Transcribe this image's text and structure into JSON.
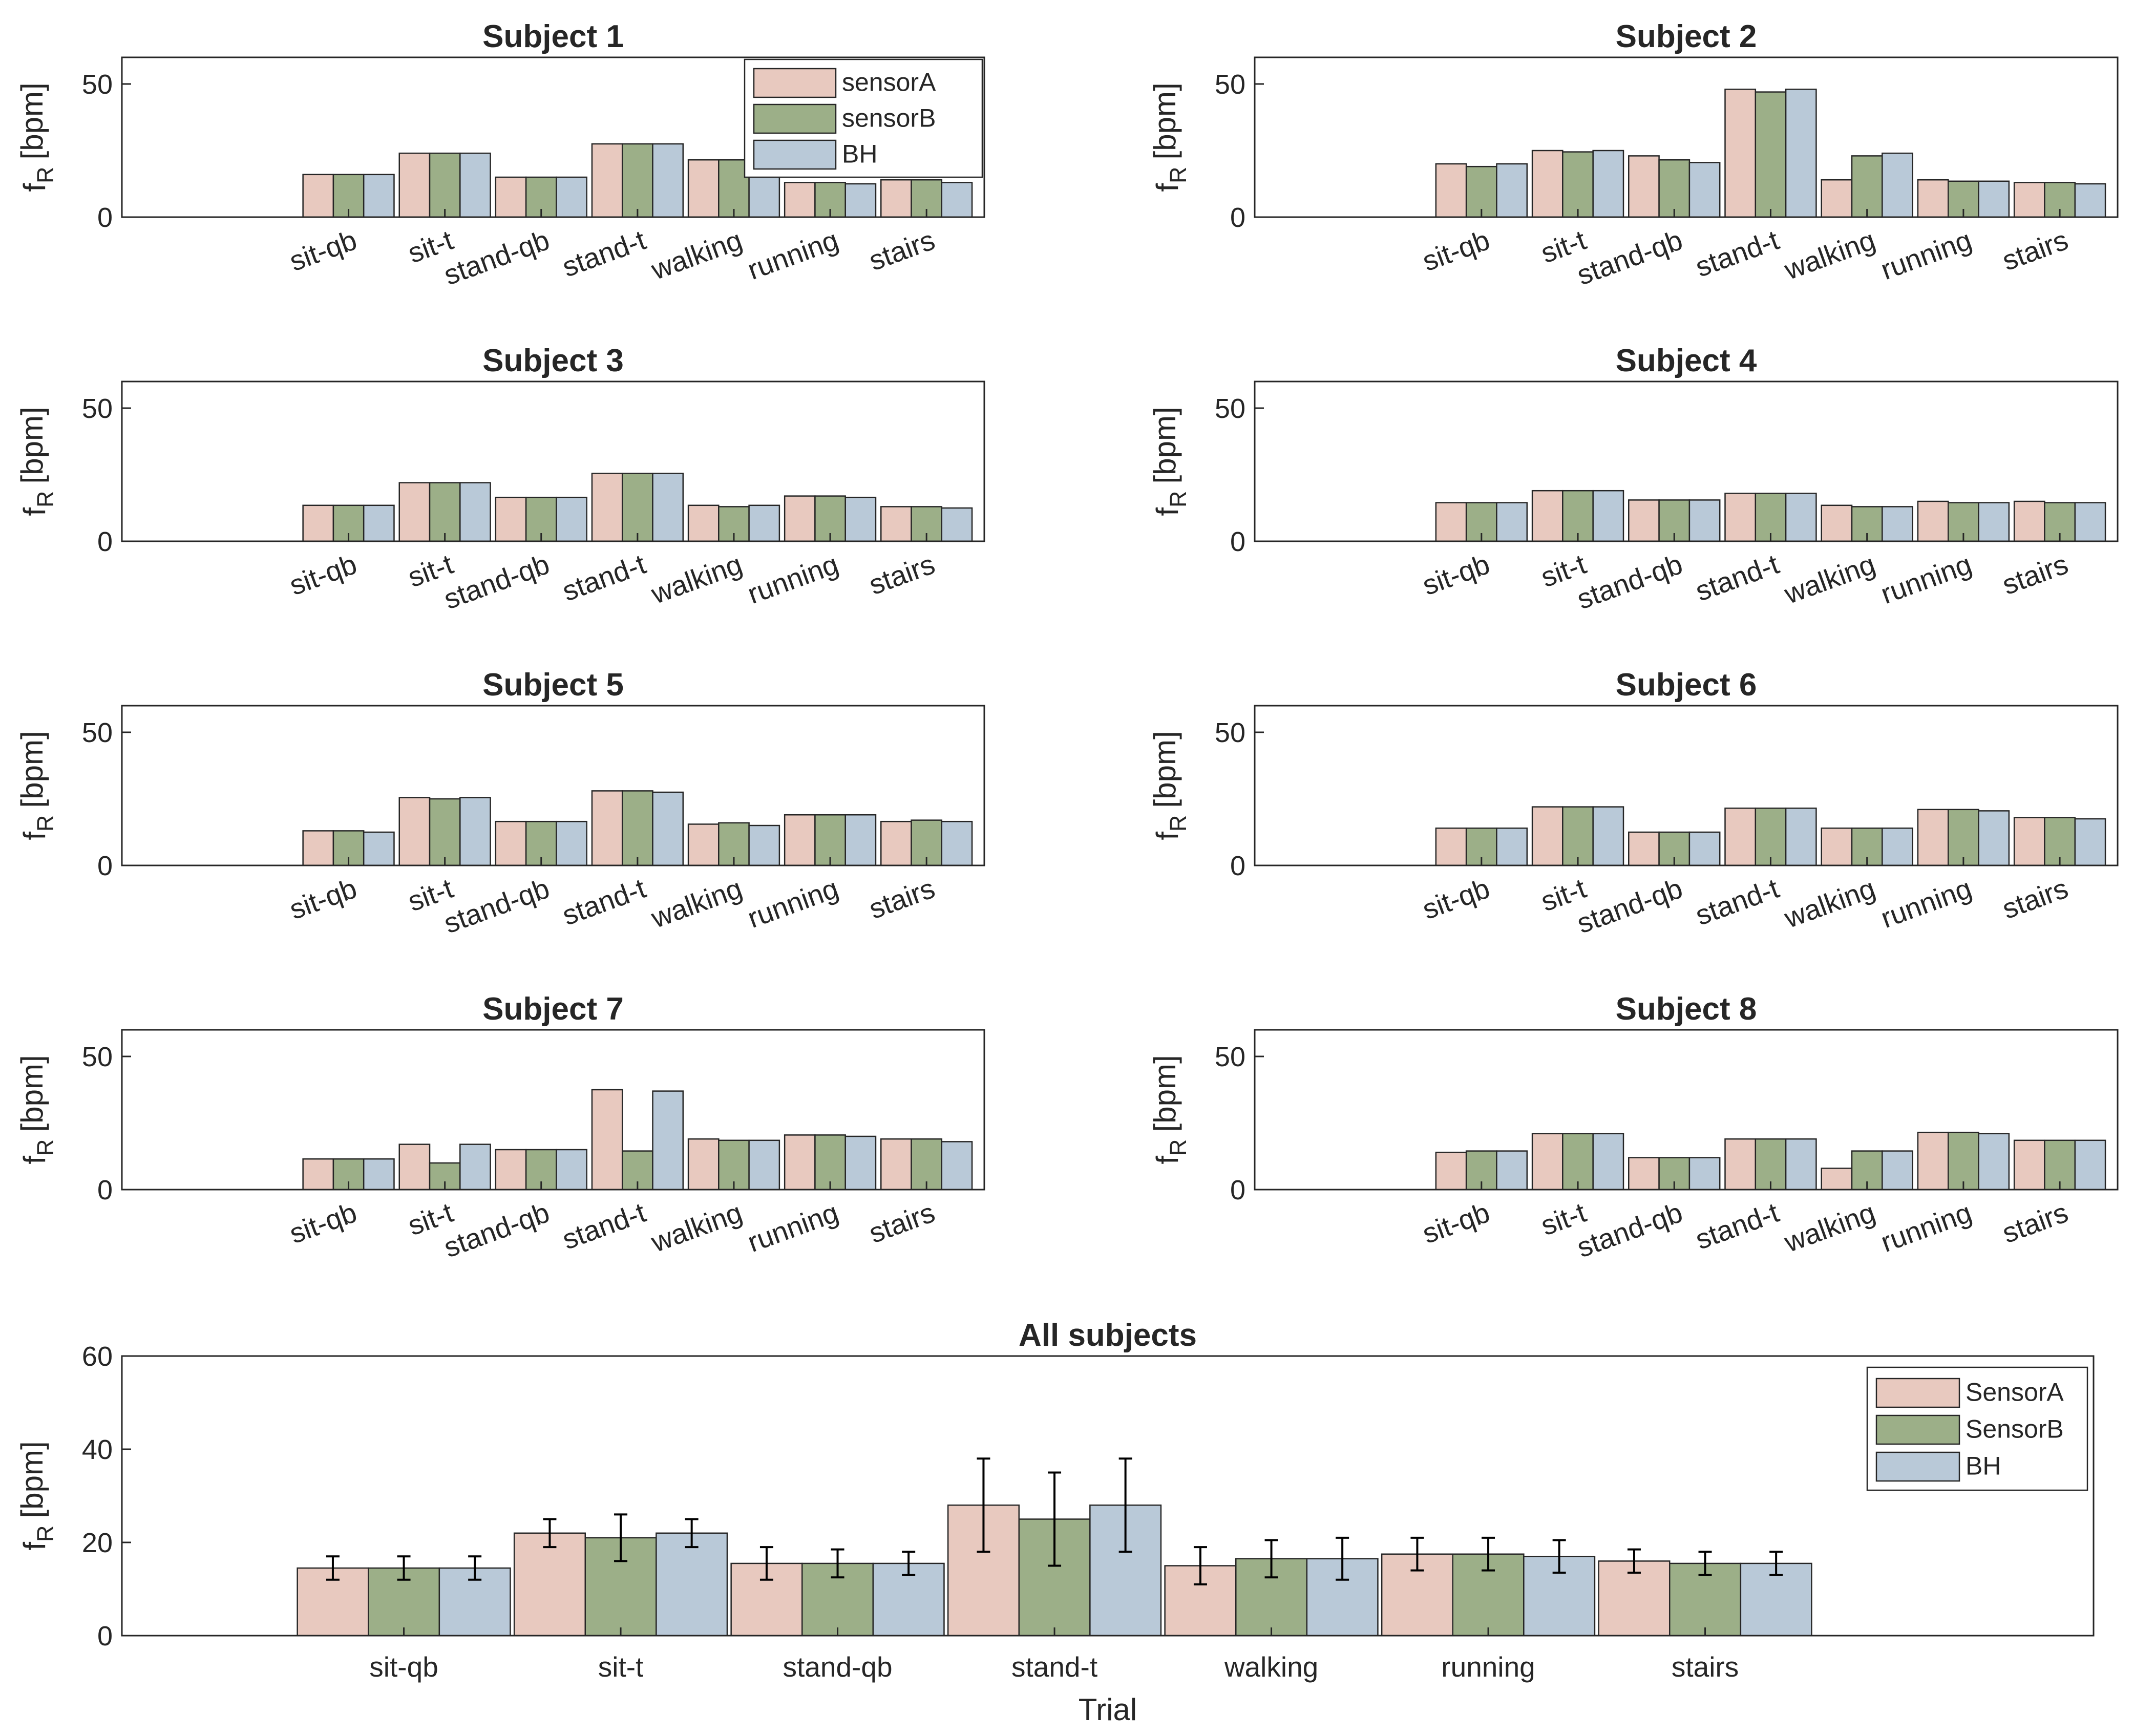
{
  "colors": {
    "sensorA": "#e8c9bf",
    "sensorB": "#9caf88",
    "BH": "#b9c9d8",
    "edge": "#262626"
  },
  "chart_data": [
    {
      "type": "bar",
      "title": "Subject 1",
      "ylabel": "f_R [bpm]",
      "ylabel_main": "f",
      "ylabel_sub": "R",
      "ylabel_unit": "[bpm]",
      "xlabel": "",
      "ylim": [
        0,
        60
      ],
      "yticks": [
        "0",
        "50"
      ],
      "legend": "top-right",
      "legend_entries": [
        "sensorA",
        "sensorB",
        "BH"
      ],
      "categories": [
        "sit-qb",
        "sit-t",
        "stand-qb",
        "stand-t",
        "walking",
        "running",
        "stairs"
      ],
      "series": [
        {
          "name": "sensorA",
          "values": [
            16,
            24,
            15,
            27.5,
            21.5,
            13,
            14
          ]
        },
        {
          "name": "sensorB",
          "values": [
            16,
            24,
            15,
            27.5,
            21.5,
            13,
            14
          ]
        },
        {
          "name": "BH",
          "values": [
            16,
            24,
            15,
            27.5,
            21.5,
            12.5,
            13
          ]
        }
      ]
    },
    {
      "type": "bar",
      "title": "Subject 2",
      "ylabel": "f_R [bpm]",
      "ylabel_main": "f",
      "ylabel_sub": "R",
      "ylabel_unit": "[bpm]",
      "xlabel": "",
      "ylim": [
        0,
        60
      ],
      "yticks": [
        "0",
        "50"
      ],
      "categories": [
        "sit-qb",
        "sit-t",
        "stand-qb",
        "stand-t",
        "walking",
        "running",
        "stairs"
      ],
      "series": [
        {
          "name": "sensorA",
          "values": [
            20,
            25,
            23,
            48,
            14,
            14,
            13
          ]
        },
        {
          "name": "sensorB",
          "values": [
            19,
            24.5,
            21.5,
            47,
            23,
            13.5,
            13
          ]
        },
        {
          "name": "BH",
          "values": [
            20,
            25,
            20.5,
            48,
            24,
            13.5,
            12.5
          ]
        }
      ]
    },
    {
      "type": "bar",
      "title": "Subject 3",
      "ylabel": "f_R [bpm]",
      "ylabel_main": "f",
      "ylabel_sub": "R",
      "ylabel_unit": "[bpm]",
      "xlabel": "",
      "ylim": [
        0,
        60
      ],
      "yticks": [
        "0",
        "50"
      ],
      "categories": [
        "sit-qb",
        "sit-t",
        "stand-qb",
        "stand-t",
        "walking",
        "running",
        "stairs"
      ],
      "series": [
        {
          "name": "sensorA",
          "values": [
            13.5,
            22,
            16.5,
            25.5,
            13.5,
            17,
            13
          ]
        },
        {
          "name": "sensorB",
          "values": [
            13.5,
            22,
            16.5,
            25.5,
            13,
            17,
            13
          ]
        },
        {
          "name": "BH",
          "values": [
            13.5,
            22,
            16.5,
            25.5,
            13.5,
            16.5,
            12.5
          ]
        }
      ]
    },
    {
      "type": "bar",
      "title": "Subject 4",
      "ylabel": "f_R [bpm]",
      "ylabel_main": "f",
      "ylabel_sub": "R",
      "ylabel_unit": "[bpm]",
      "xlabel": "",
      "ylim": [
        0,
        60
      ],
      "yticks": [
        "0",
        "50"
      ],
      "categories": [
        "sit-qb",
        "sit-t",
        "stand-qb",
        "stand-t",
        "walking",
        "running",
        "stairs"
      ],
      "series": [
        {
          "name": "sensorA",
          "values": [
            14.5,
            19,
            15.5,
            18,
            13.5,
            15,
            15
          ]
        },
        {
          "name": "sensorB",
          "values": [
            14.5,
            19,
            15.5,
            18,
            13,
            14.5,
            14.5
          ]
        },
        {
          "name": "BH",
          "values": [
            14.5,
            19,
            15.5,
            18,
            13,
            14.5,
            14.5
          ]
        }
      ]
    },
    {
      "type": "bar",
      "title": "Subject 5",
      "ylabel": "f_R [bpm]",
      "ylabel_main": "f",
      "ylabel_sub": "R",
      "ylabel_unit": "[bpm]",
      "xlabel": "",
      "ylim": [
        0,
        60
      ],
      "yticks": [
        "0",
        "50"
      ],
      "categories": [
        "sit-qb",
        "sit-t",
        "stand-qb",
        "stand-t",
        "walking",
        "running",
        "stairs"
      ],
      "series": [
        {
          "name": "sensorA",
          "values": [
            13,
            25.5,
            16.5,
            28,
            15.5,
            19,
            16.5
          ]
        },
        {
          "name": "sensorB",
          "values": [
            13,
            25,
            16.5,
            28,
            16,
            19,
            17
          ]
        },
        {
          "name": "BH",
          "values": [
            12.5,
            25.5,
            16.5,
            27.5,
            15,
            19,
            16.5
          ]
        }
      ]
    },
    {
      "type": "bar",
      "title": "Subject 6",
      "ylabel": "f_R [bpm]",
      "ylabel_main": "f",
      "ylabel_sub": "R",
      "ylabel_unit": "[bpm]",
      "xlabel": "",
      "ylim": [
        0,
        60
      ],
      "yticks": [
        "0",
        "50"
      ],
      "categories": [
        "sit-qb",
        "sit-t",
        "stand-qb",
        "stand-t",
        "walking",
        "running",
        "stairs"
      ],
      "series": [
        {
          "name": "sensorA",
          "values": [
            14,
            22,
            12.5,
            21.5,
            14,
            21,
            18
          ]
        },
        {
          "name": "sensorB",
          "values": [
            14,
            22,
            12.5,
            21.5,
            14,
            21,
            18
          ]
        },
        {
          "name": "BH",
          "values": [
            14,
            22,
            12.5,
            21.5,
            14,
            20.5,
            17.5
          ]
        }
      ]
    },
    {
      "type": "bar",
      "title": "Subject 7",
      "ylabel": "f_R [bpm]",
      "ylabel_main": "f",
      "ylabel_sub": "R",
      "ylabel_unit": "[bpm]",
      "xlabel": "",
      "ylim": [
        0,
        60
      ],
      "yticks": [
        "0",
        "50"
      ],
      "categories": [
        "sit-qb",
        "sit-t",
        "stand-qb",
        "stand-t",
        "walking",
        "running",
        "stairs"
      ],
      "series": [
        {
          "name": "sensorA",
          "values": [
            11.5,
            17,
            15,
            37.5,
            19,
            20.5,
            19
          ]
        },
        {
          "name": "sensorB",
          "values": [
            11.5,
            10,
            15,
            14.5,
            18.5,
            20.5,
            19
          ]
        },
        {
          "name": "BH",
          "values": [
            11.5,
            17,
            15,
            37,
            18.5,
            20,
            18
          ]
        }
      ]
    },
    {
      "type": "bar",
      "title": "Subject 8",
      "ylabel": "f_R [bpm]",
      "ylabel_main": "f",
      "ylabel_sub": "R",
      "ylabel_unit": "[bpm]",
      "xlabel": "",
      "ylim": [
        0,
        60
      ],
      "yticks": [
        "0",
        "50"
      ],
      "categories": [
        "sit-qb",
        "sit-t",
        "stand-qb",
        "stand-t",
        "walking",
        "running",
        "stairs"
      ],
      "series": [
        {
          "name": "sensorA",
          "values": [
            14,
            21,
            12,
            19,
            8,
            21.5,
            18.5
          ]
        },
        {
          "name": "sensorB",
          "values": [
            14.5,
            21,
            12,
            19,
            14.5,
            21.5,
            18.5
          ]
        },
        {
          "name": "BH",
          "values": [
            14.5,
            21,
            12,
            19,
            14.5,
            21,
            18.5
          ]
        }
      ]
    },
    {
      "type": "bar",
      "title": "All subjects",
      "ylabel": "f_R [bpm]",
      "ylabel_main": "f",
      "ylabel_sub": "R",
      "ylabel_unit": "[bpm]",
      "xlabel": "Trial",
      "ylim": [
        0,
        60
      ],
      "yticks": [
        "0",
        "20",
        "40",
        "60"
      ],
      "legend": "top-right",
      "legend_entries": [
        "SensorA",
        "SensorB",
        "BH"
      ],
      "categories": [
        "sit-qb",
        "sit-t",
        "stand-qb",
        "stand-t",
        "walking",
        "running",
        "stairs"
      ],
      "series": [
        {
          "name": "SensorA",
          "values": [
            14.5,
            22,
            15.5,
            28,
            15,
            17.5,
            16
          ],
          "errors": [
            2.5,
            3,
            3.5,
            10,
            4,
            3.5,
            2.5
          ]
        },
        {
          "name": "SensorB",
          "values": [
            14.5,
            21,
            15.5,
            25,
            16.5,
            17.5,
            15.5
          ],
          "errors": [
            2.5,
            5,
            3,
            10,
            4,
            3.5,
            2.5
          ]
        },
        {
          "name": "BH",
          "values": [
            14.5,
            22,
            15.5,
            28,
            16.5,
            17,
            15.5
          ],
          "errors": [
            2.5,
            3,
            2.5,
            10,
            4.5,
            3.5,
            2.5
          ]
        }
      ]
    }
  ]
}
